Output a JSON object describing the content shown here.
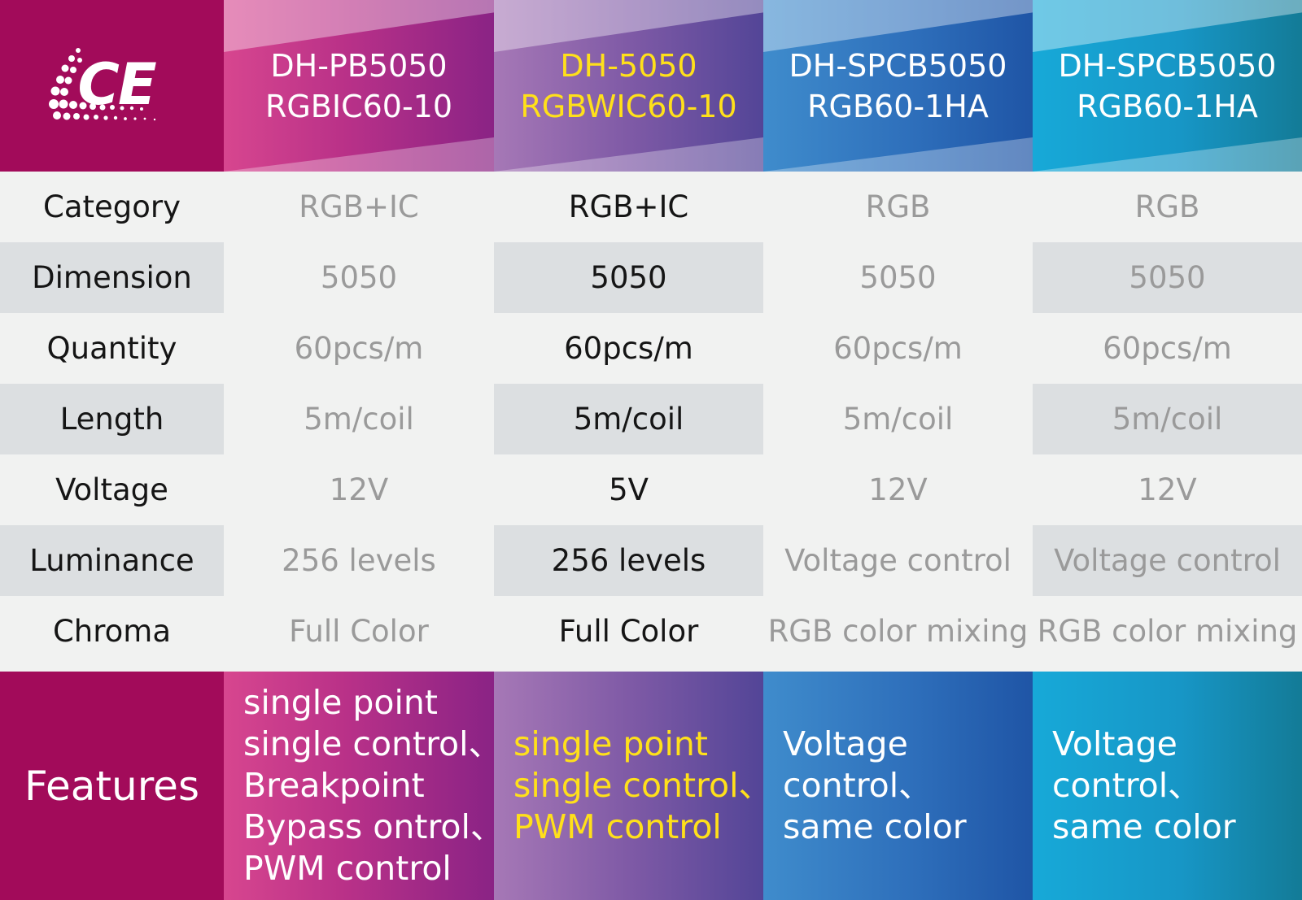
{
  "logo": {
    "text": "CE"
  },
  "colors": {
    "brand": "#a20b5a",
    "highlight": "#ffe01a",
    "white": "#ffffff",
    "label_dark": "#151515",
    "value_gray": "#9a9a9a"
  },
  "columns": [
    {
      "line1": "DH-PB5050",
      "line2": "RGBIC60-10"
    },
    {
      "line1": "DH-5050",
      "line2": "RGBWIC60-10"
    },
    {
      "line1": "DH-SPCB5050",
      "line2": "RGB60-1HA"
    },
    {
      "line1": "DH-SPCB5050",
      "line2": "RGB60-1HA"
    }
  ],
  "rows": [
    {
      "label": "Category",
      "values": [
        "RGB+IC",
        "RGB+IC",
        "RGB",
        "RGB"
      ]
    },
    {
      "label": "Dimension",
      "values": [
        "5050",
        "5050",
        "5050",
        "5050"
      ]
    },
    {
      "label": "Quantity",
      "values": [
        "60pcs/m",
        "60pcs/m",
        "60pcs/m",
        "60pcs/m"
      ]
    },
    {
      "label": "Length",
      "values": [
        "5m/coil",
        "5m/coil",
        "5m/coil",
        "5m/coil"
      ]
    },
    {
      "label": "Voltage",
      "values": [
        "12V",
        "5V",
        "12V",
        "12V"
      ]
    },
    {
      "label": "Luminance",
      "values": [
        "256 levels",
        "256 levels",
        "Voltage control",
        "Voltage control"
      ]
    },
    {
      "label": "Chroma",
      "values": [
        "Full Color",
        "Full Color",
        "RGB color mixing",
        "RGB color mixing"
      ]
    }
  ],
  "features": {
    "label": "Features",
    "columns": [
      [
        "single point",
        "single control、",
        "Breakpoint",
        "Bypass ontrol、",
        "PWM control"
      ],
      [
        "single point",
        "single control、",
        "PWM control"
      ],
      [
        "Voltage",
        "control、",
        "same color"
      ],
      [
        "Voltage",
        "control、",
        "same color"
      ]
    ]
  }
}
